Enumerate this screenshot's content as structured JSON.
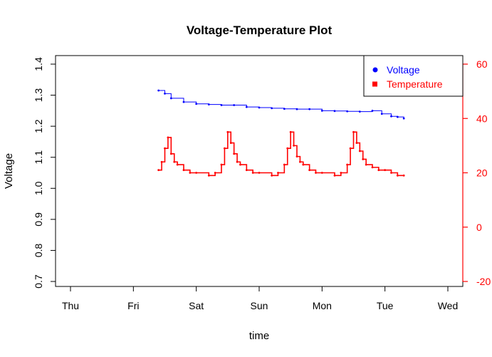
{
  "chart_data": {
    "type": "line",
    "title": "Voltage-Temperature Plot",
    "xlabel": "time",
    "ylabel": "Voltage",
    "y2label": "",
    "categories": [
      "Thu",
      "Fri",
      "Sat",
      "Sun",
      "Mon",
      "Tue",
      "Wed"
    ],
    "xlim": [
      0,
      6
    ],
    "ylim": [
      0.7,
      1.4
    ],
    "y2lim": [
      -20,
      60
    ],
    "yticks": [
      "0.7",
      "0.8",
      "0.9",
      "1.0",
      "1.1",
      "1.2",
      "1.3",
      "1.4"
    ],
    "y2ticks": [
      "-20",
      "0",
      "20",
      "40",
      "60"
    ],
    "legend": {
      "position": "top-right",
      "entries": [
        "Voltage",
        "Temperature"
      ]
    },
    "series": [
      {
        "name": "Voltage",
        "axis": "left",
        "color": "#0000ff",
        "marker": "circle",
        "x": [
          1.4,
          1.5,
          1.6,
          1.8,
          2.0,
          2.2,
          2.4,
          2.6,
          2.8,
          3.0,
          3.2,
          3.4,
          3.6,
          3.8,
          4.0,
          4.2,
          4.4,
          4.6,
          4.8,
          4.95,
          5.1,
          5.2,
          5.3
        ],
        "values": [
          1.315,
          1.305,
          1.29,
          1.278,
          1.272,
          1.27,
          1.268,
          1.268,
          1.262,
          1.26,
          1.258,
          1.256,
          1.255,
          1.255,
          1.25,
          1.249,
          1.248,
          1.247,
          1.25,
          1.24,
          1.232,
          1.23,
          1.225
        ]
      },
      {
        "name": "Temperature",
        "axis": "right",
        "color": "#ff0000",
        "marker": "square",
        "x": [
          1.4,
          1.45,
          1.5,
          1.55,
          1.6,
          1.65,
          1.7,
          1.8,
          1.9,
          2.0,
          2.2,
          2.3,
          2.4,
          2.45,
          2.5,
          2.55,
          2.6,
          2.65,
          2.7,
          2.8,
          2.9,
          3.0,
          3.2,
          3.3,
          3.4,
          3.45,
          3.5,
          3.55,
          3.6,
          3.65,
          3.7,
          3.8,
          3.9,
          4.0,
          4.2,
          4.3,
          4.4,
          4.45,
          4.5,
          4.55,
          4.6,
          4.65,
          4.7,
          4.8,
          4.9,
          5.0,
          5.1,
          5.2,
          5.3
        ],
        "values": [
          21,
          24,
          29,
          33,
          27,
          24,
          23,
          21,
          20,
          20,
          19,
          20,
          23,
          29,
          35,
          31,
          27,
          24,
          23,
          21,
          20,
          20,
          19,
          20,
          23,
          29,
          35,
          30,
          26,
          24,
          23,
          21,
          20,
          20,
          19,
          20,
          23,
          29,
          35,
          31,
          28,
          25,
          23,
          22,
          21,
          21,
          20,
          19,
          19
        ]
      }
    ]
  }
}
